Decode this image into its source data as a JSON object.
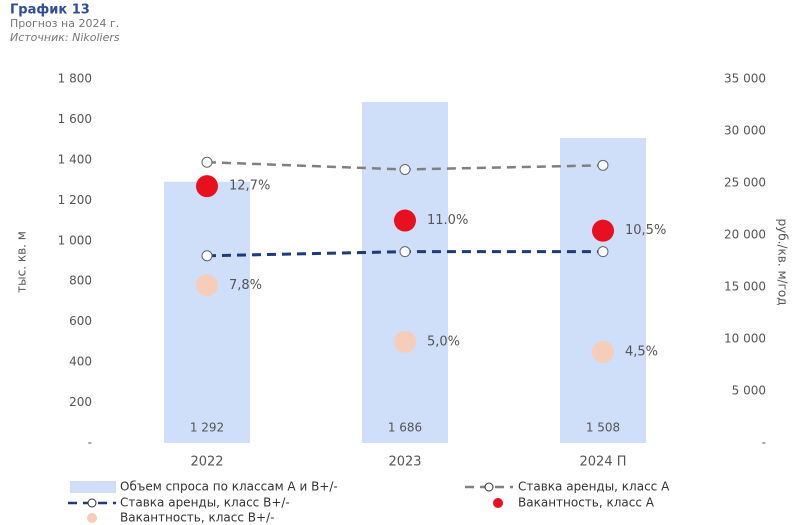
{
  "chart_data": {
    "type": "combo",
    "title": "График 13",
    "subtitle": "Прогноз на 2024 г.",
    "source": "Источник: Nikoliers",
    "ylabel": "тыс. кв. м",
    "y2label": "руб./кв. м/год",
    "categories": [
      "2022",
      "2023",
      "2024 П"
    ],
    "ylim": [
      0,
      1800
    ],
    "yticks": [
      {
        "value": 0,
        "label": "-"
      },
      200,
      400,
      600,
      800,
      {
        "value": 1000,
        "label": "1 000"
      },
      {
        "value": 1200,
        "label": "1 200"
      },
      {
        "value": 1400,
        "label": "1 400"
      },
      {
        "value": 1600,
        "label": "1 600"
      },
      {
        "value": 1800,
        "label": "1 800"
      }
    ],
    "y2lim": [
      0,
      35000
    ],
    "y2ticks": [
      {
        "value": 0,
        "label": "-"
      },
      {
        "value": 5000,
        "label": "5 000"
      },
      {
        "value": 10000,
        "label": "10 000"
      },
      {
        "value": 15000,
        "label": "15 000"
      },
      {
        "value": 20000,
        "label": "20 000"
      },
      {
        "value": 25000,
        "label": "25 000"
      },
      {
        "value": 30000,
        "label": "30 000"
      },
      {
        "value": 35000,
        "label": "35 000"
      }
    ],
    "y3lim": [
      0,
      18
    ],
    "series": [
      {
        "name": "Объем спроса по классам А и В+/-",
        "type": "bar",
        "color": "#cfdffa",
        "values": [
          1292,
          1686,
          1508
        ],
        "value_labels": [
          "1 292",
          "1 686",
          "1 508"
        ]
      },
      {
        "name": "Ставка аренды, класс А",
        "type": "line",
        "axis": "y2",
        "color": "#808080",
        "values": [
          27000,
          26300,
          26700
        ]
      },
      {
        "name": "Ставка аренды, класс В+/-",
        "type": "line",
        "axis": "y2",
        "color": "#1f3a7a",
        "values": [
          18000,
          18400,
          18400
        ]
      },
      {
        "name": "Вакантность, класс А",
        "type": "scatter",
        "axis": "y3",
        "color": "#e8101e",
        "values": [
          12.7,
          11.0,
          10.5
        ],
        "value_labels": [
          "12,7%",
          "11.0%",
          "10,5%"
        ]
      },
      {
        "name": "Вакантность, класс В+/-",
        "type": "scatter",
        "axis": "y3",
        "color": "#f5cdb8",
        "values": [
          7.8,
          5.0,
          4.5
        ],
        "value_labels": [
          "7,8%",
          "5,0%",
          "4,5%"
        ]
      }
    ]
  }
}
